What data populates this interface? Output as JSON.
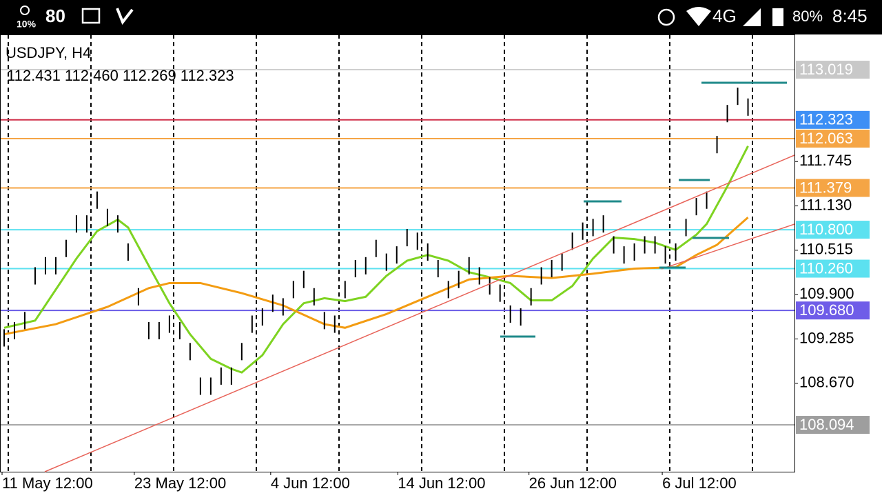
{
  "status_bar": {
    "weather_level": "10%",
    "notification_count": "80",
    "network": "4G",
    "battery": "80%",
    "time": "8:45"
  },
  "chart_data": {
    "type": "ohlc",
    "title": "USDJPY, H4",
    "ohlc": [
      112.431,
      112.46,
      112.269,
      112.323
    ],
    "ohlc_labels": [
      "112.431",
      "112.460",
      "112.269",
      "112.323"
    ],
    "bar_color": "#000000",
    "xlim": [
      -0.4,
      76.5
    ],
    "ylim": [
      107.444,
      113.507
    ],
    "xticks": [
      {
        "value": -0.2,
        "label": "11 May 12:00"
      },
      {
        "value": 12.6,
        "label": "23 May 12:00"
      },
      {
        "value": 25.8,
        "label": "4 Jun 12:00"
      },
      {
        "value": 38.1,
        "label": "14 Jun 12:00"
      },
      {
        "value": 50.8,
        "label": "26 Jun 12:00"
      },
      {
        "value": 63.7,
        "label": "6 Jul 12:00"
      }
    ],
    "yticks": [
      111.745,
      {
        "value": 111.13,
        "label": "111.130"
      },
      110.515,
      {
        "value": 109.9,
        "label": "109.900"
      },
      109.285,
      {
        "value": 108.67,
        "label": "108.670"
      }
    ],
    "highs": [
      109.42,
      109.52,
      109.66,
      110.28,
      110.42,
      110.42,
      110.66,
      111.0,
      111.0,
      111.33,
      111.09,
      111.0,
      110.61,
      109.99,
      109.52,
      109.52,
      109.61,
      109.52,
      109.23,
      108.75,
      108.75,
      108.89,
      108.89,
      109.23,
      109.61,
      109.71,
      109.9,
      109.85,
      110.09,
      110.23,
      109.99,
      109.66,
      109.61,
      110.09,
      110.38,
      110.42,
      110.66,
      110.47,
      110.57,
      110.81,
      110.76,
      110.61,
      110.38,
      110.09,
      110.23,
      110.42,
      110.28,
      110.14,
      110.04,
      109.75,
      109.71,
      109.99,
      110.28,
      110.38,
      110.47,
      110.76,
      110.9,
      110.95,
      111.0,
      110.71,
      110.57,
      110.61,
      110.71,
      110.71,
      110.57,
      110.61,
      110.95,
      111.24,
      111.33,
      112.1,
      112.53,
      112.77,
      112.62
    ],
    "lows": [
      109.18,
      109.28,
      109.42,
      110.04,
      110.18,
      110.18,
      110.42,
      110.76,
      110.76,
      111.09,
      110.85,
      110.76,
      110.37,
      109.75,
      109.28,
      109.28,
      109.37,
      109.28,
      108.99,
      108.51,
      108.51,
      108.65,
      108.65,
      108.99,
      109.37,
      109.47,
      109.66,
      109.61,
      109.85,
      109.99,
      109.75,
      109.42,
      109.37,
      109.85,
      110.14,
      110.18,
      110.42,
      110.23,
      110.33,
      110.57,
      110.52,
      110.37,
      110.14,
      109.85,
      109.99,
      110.18,
      110.04,
      109.9,
      109.8,
      109.51,
      109.47,
      109.75,
      110.04,
      110.14,
      110.23,
      110.52,
      110.66,
      110.71,
      110.76,
      110.47,
      110.33,
      110.37,
      110.47,
      110.47,
      110.33,
      110.37,
      110.71,
      111.0,
      111.09,
      111.86,
      112.29,
      112.53,
      112.38
    ],
    "moving_averages": [
      {
        "color": "#7ed321",
        "x": [
          0,
          3,
          5,
          7,
          9,
          11,
          12,
          14,
          16,
          18,
          20,
          22,
          23,
          25,
          27,
          29,
          31,
          33,
          35,
          37,
          39,
          41,
          43,
          45,
          47,
          49,
          51,
          53,
          55,
          57,
          59,
          61,
          63,
          65,
          67,
          68,
          70,
          72
        ],
        "values": [
          109.44,
          109.54,
          109.97,
          110.4,
          110.78,
          110.94,
          110.83,
          110.3,
          109.78,
          109.35,
          109.01,
          108.87,
          108.82,
          109.06,
          109.49,
          109.78,
          109.85,
          109.81,
          109.87,
          110.16,
          110.37,
          110.45,
          110.37,
          110.21,
          110.14,
          110.06,
          109.82,
          109.82,
          110.02,
          110.4,
          110.69,
          110.67,
          110.62,
          110.52,
          110.73,
          110.88,
          111.4,
          111.96
        ]
      },
      {
        "color": "#f39c12",
        "x": [
          0,
          5,
          10,
          14,
          16,
          19,
          23,
          27,
          31,
          33,
          37,
          41,
          45,
          49,
          53,
          57,
          61,
          65,
          67,
          69,
          72
        ],
        "values": [
          109.35,
          109.49,
          109.73,
          109.99,
          110.06,
          110.06,
          109.92,
          109.75,
          109.49,
          109.44,
          109.63,
          109.87,
          110.11,
          110.16,
          110.13,
          110.19,
          110.26,
          110.28,
          110.45,
          110.59,
          110.97
        ]
      }
    ],
    "levels": [
      {
        "value": 113.019,
        "color": "#cfcfcf",
        "box": "#c8c8c8"
      },
      {
        "value": 112.323,
        "color": "#d0304a",
        "box": "#3d8ff5"
      },
      {
        "value": 112.063,
        "color": "#f5a545",
        "box": "#f5a545"
      },
      {
        "value": 111.379,
        "color": "#f5a545",
        "box": "#f5a545"
      },
      {
        "value": 110.8,
        "label": "110.800",
        "color": "#5ce1f0",
        "box": "#5ce1f0"
      },
      {
        "value": 110.26,
        "label": "110.260",
        "color": "#5ce1f0",
        "box": "#5ce1f0"
      },
      {
        "value": 109.68,
        "label": "109.680",
        "color": "#6a5ce6",
        "box": "#6f5de8"
      },
      {
        "value": 108.094,
        "color": "#a8a8a8",
        "box": "#9e9e9e"
      }
    ]
  }
}
